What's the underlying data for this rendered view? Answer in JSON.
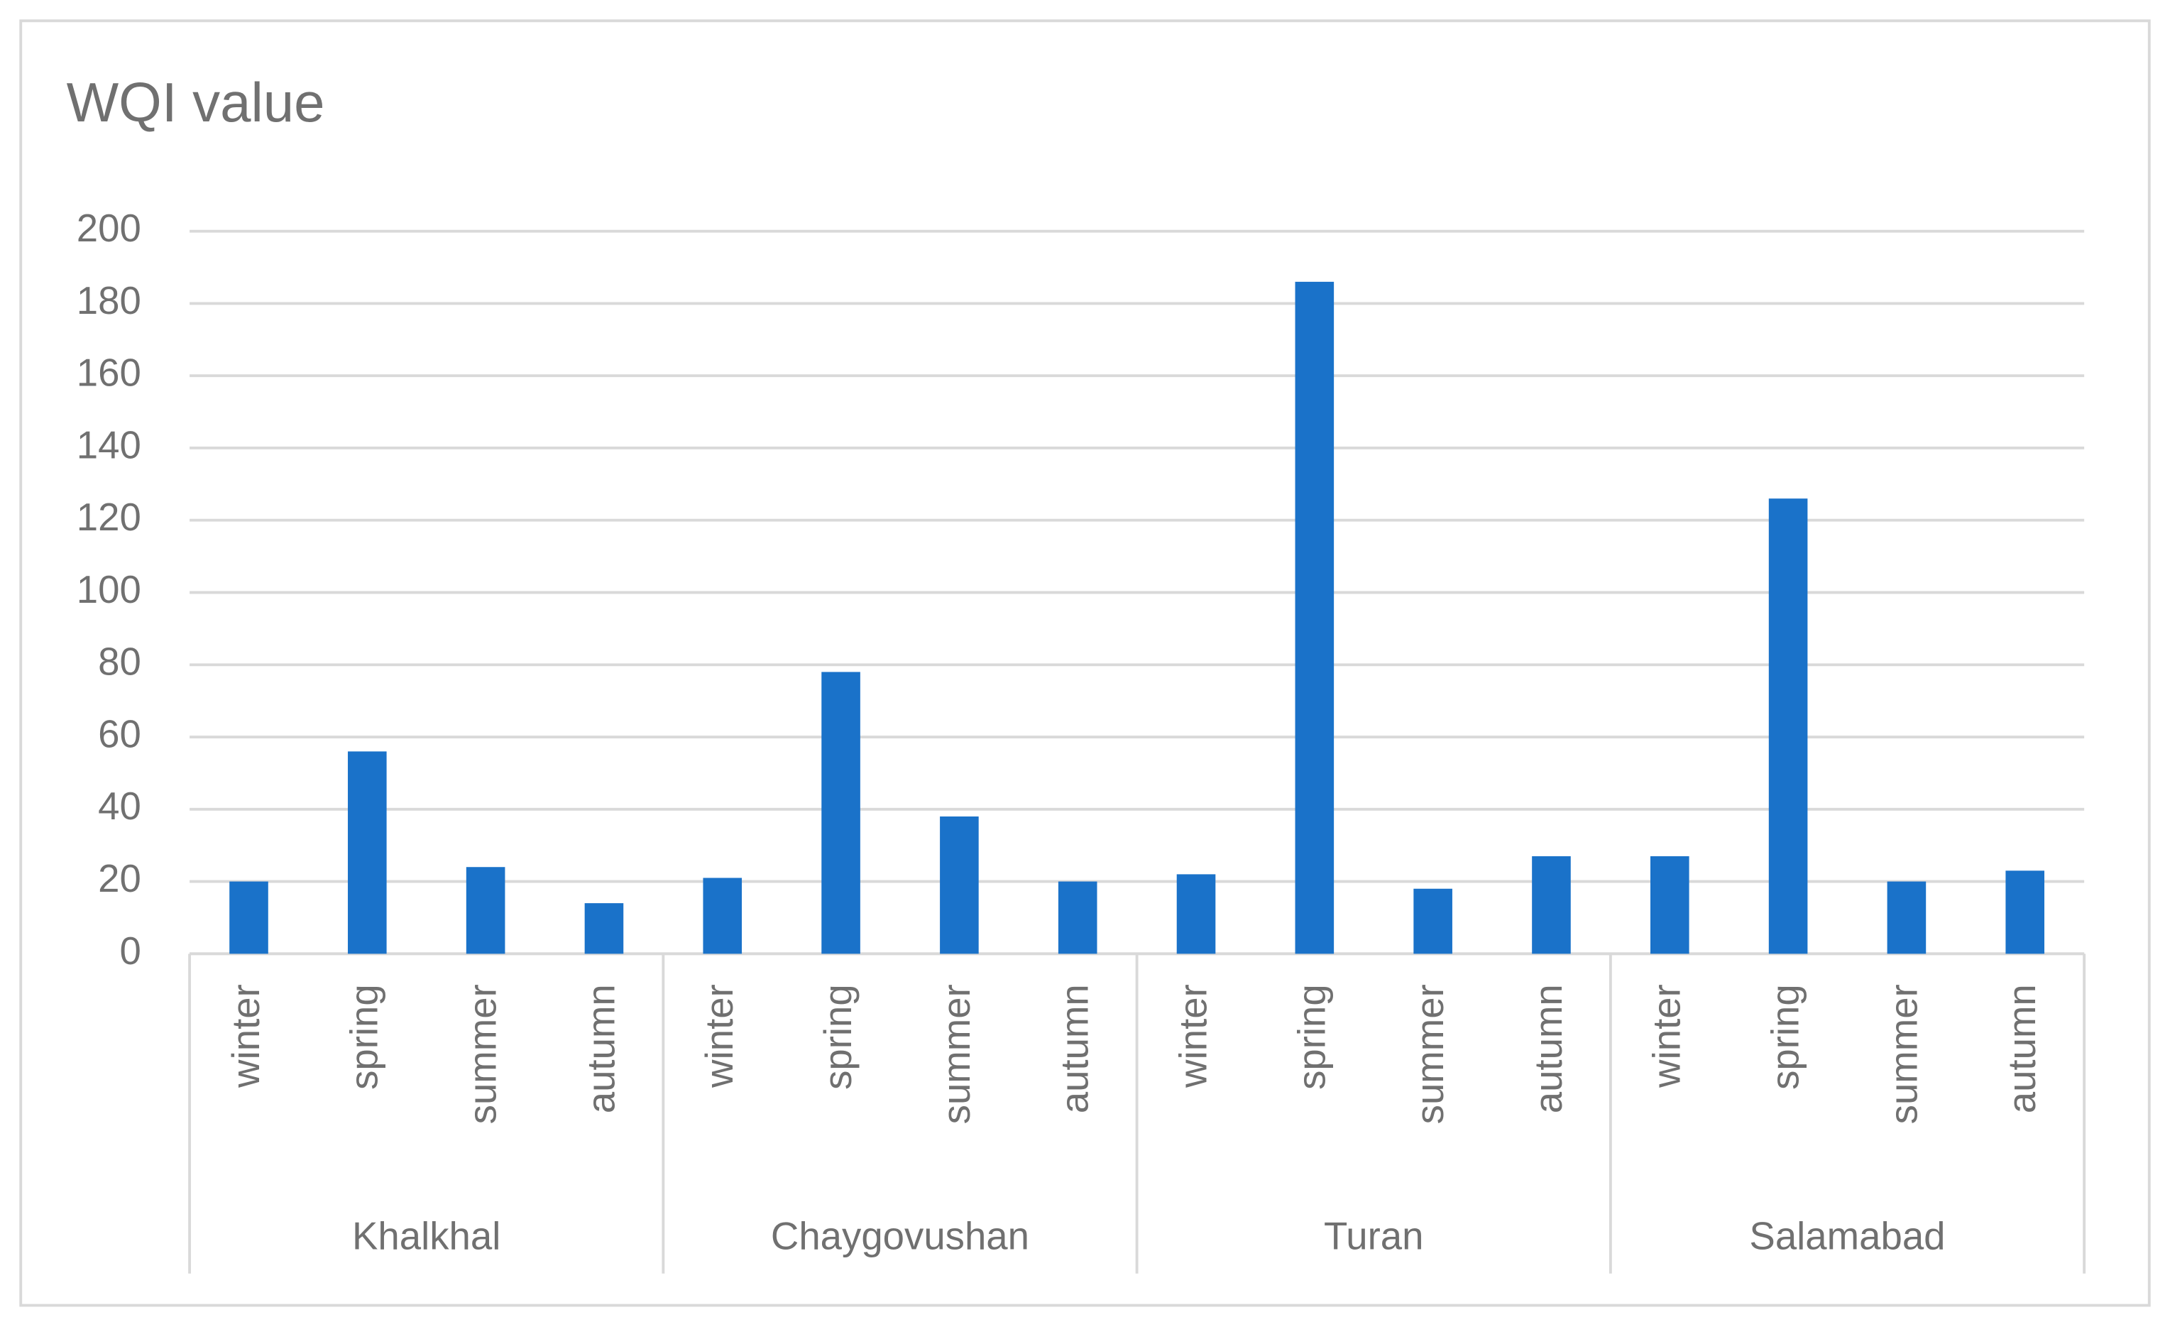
{
  "chart_data": {
    "type": "bar",
    "title": "WQI value",
    "categories": [
      "winter",
      "spring",
      "summer",
      "autumn",
      "winter",
      "spring",
      "summer",
      "autumn",
      "winter",
      "spring",
      "summer",
      "autumn",
      "winter",
      "spring",
      "summer",
      "autumn"
    ],
    "groups": [
      "Khalkhal",
      "Chaygovushan",
      "Turan",
      "Salamabad"
    ],
    "values": [
      20,
      56,
      24,
      14,
      21,
      78,
      38,
      20,
      22,
      186,
      18,
      27,
      27,
      126,
      20,
      23
    ],
    "color": "#1a72c9",
    "ylim": [
      0,
      200
    ],
    "yticks": [
      0,
      20,
      40,
      60,
      80,
      100,
      120,
      140,
      160,
      180,
      200
    ],
    "grid": true
  }
}
